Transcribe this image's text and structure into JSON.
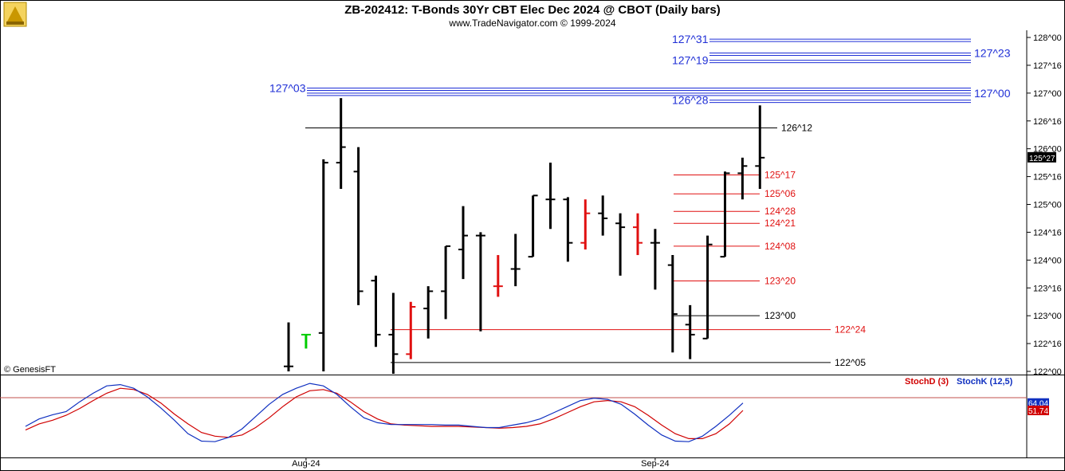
{
  "header": {
    "title": "ZB-202412:  T-Bonds 30Yr CBT Elec Dec 2024 @ CBOT  (Daily bars)",
    "subtitle": "www.TradeNavigator.com © 1999-2024"
  },
  "watermark": "© GenesisFT",
  "logo_icon": "trading-floor-logo-icon",
  "colors": {
    "up": "#00cc00",
    "down": "#e01010",
    "neutral": "#000000",
    "levels_blue": "#1f2fd6",
    "levels_red": "#e01010",
    "stochD": "#d00000",
    "stochK": "#1030c0",
    "last_badge": "#000000",
    "stochK_badge": "#1030c0",
    "stochD_badge": "#d00000"
  },
  "chart_data": [
    {
      "type": "ohlc",
      "title": "ZB-202412:  T-Bonds 30Yr CBT Elec Dec 2024 @ CBOT  (Daily bars)",
      "y_unit": "32nds",
      "ylim": [
        122.0,
        128.125
      ],
      "y_ticks": [
        "128^00",
        "127^16",
        "127^00",
        "126^16",
        "126^00",
        "125^16",
        "125^00",
        "124^16",
        "124^00",
        "123^16",
        "123^00",
        "122^16",
        "122^00"
      ],
      "y_tick_values": [
        128.0,
        127.5,
        127.0,
        126.5,
        126.0,
        125.5,
        125.0,
        124.5,
        124.0,
        123.5,
        123.0,
        122.5,
        122.0
      ],
      "x_labels": [
        {
          "label": "Aug-24",
          "bar": 1
        },
        {
          "label": "Sep-24",
          "bar": 21
        }
      ],
      "last_price": "125^27",
      "last_price_value": 125.84,
      "bars": [
        {
          "o": 122.09,
          "h": 122.88,
          "l": 122.0,
          "c": 122.09,
          "color": "neutral"
        },
        {
          "o": 122.66,
          "h": 122.66,
          "l": 122.41,
          "c": 122.66,
          "color": "up"
        },
        {
          "o": 122.69,
          "h": 125.81,
          "l": 122.0,
          "c": 125.75,
          "color": "neutral"
        },
        {
          "o": 125.75,
          "h": 126.91,
          "l": 125.28,
          "c": 126.03,
          "color": "neutral"
        },
        {
          "o": 125.59,
          "h": 126.03,
          "l": 123.19,
          "c": 123.44,
          "color": "neutral"
        },
        {
          "o": 123.63,
          "h": 123.72,
          "l": 122.44,
          "c": 122.66,
          "color": "neutral"
        },
        {
          "o": 122.66,
          "h": 123.41,
          "l": 121.75,
          "c": 122.31,
          "color": "neutral"
        },
        {
          "o": 122.31,
          "h": 123.25,
          "l": 122.22,
          "c": 123.16,
          "color": "down"
        },
        {
          "o": 123.13,
          "h": 123.53,
          "l": 122.59,
          "c": 123.44,
          "color": "neutral"
        },
        {
          "o": 123.44,
          "h": 124.25,
          "l": 122.94,
          "c": 124.25,
          "color": "neutral"
        },
        {
          "o": 124.19,
          "h": 124.97,
          "l": 123.66,
          "c": 124.44,
          "color": "neutral"
        },
        {
          "o": 124.44,
          "h": 124.5,
          "l": 122.72,
          "c": 124.44,
          "color": "neutral"
        },
        {
          "o": 123.53,
          "h": 124.09,
          "l": 123.34,
          "c": 123.53,
          "color": "down"
        },
        {
          "o": 123.84,
          "h": 124.47,
          "l": 123.53,
          "c": 123.84,
          "color": "neutral"
        },
        {
          "o": 124.06,
          "h": 125.16,
          "l": 124.06,
          "c": 125.16,
          "color": "neutral"
        },
        {
          "o": 125.09,
          "h": 125.75,
          "l": 124.56,
          "c": 125.09,
          "color": "neutral"
        },
        {
          "o": 125.09,
          "h": 125.13,
          "l": 123.97,
          "c": 124.31,
          "color": "neutral"
        },
        {
          "o": 124.31,
          "h": 125.09,
          "l": 124.19,
          "c": 124.84,
          "color": "down"
        },
        {
          "o": 124.84,
          "h": 125.16,
          "l": 124.44,
          "c": 124.75,
          "color": "neutral"
        },
        {
          "o": 124.66,
          "h": 124.84,
          "l": 123.72,
          "c": 124.59,
          "color": "neutral"
        },
        {
          "o": 124.59,
          "h": 124.84,
          "l": 124.09,
          "c": 124.31,
          "color": "down"
        },
        {
          "o": 124.31,
          "h": 124.56,
          "l": 123.47,
          "c": 124.31,
          "color": "neutral"
        },
        {
          "o": 123.91,
          "h": 124.09,
          "l": 122.34,
          "c": 123.03,
          "color": "neutral"
        },
        {
          "o": 122.84,
          "h": 123.19,
          "l": 122.22,
          "c": 122.66,
          "color": "neutral"
        },
        {
          "o": 122.59,
          "h": 124.44,
          "l": 122.59,
          "c": 124.28,
          "color": "neutral"
        },
        {
          "o": 124.06,
          "h": 125.59,
          "l": 124.06,
          "c": 125.56,
          "color": "neutral"
        },
        {
          "o": 125.56,
          "h": 125.84,
          "l": 125.09,
          "c": 125.69,
          "color": "neutral"
        },
        {
          "o": 125.69,
          "h": 126.78,
          "l": 125.28,
          "c": 125.84,
          "color": "neutral"
        }
      ],
      "levels": [
        {
          "label": "127^31",
          "value": 127.97,
          "color": "blue",
          "side": "left"
        },
        {
          "label": "127^23",
          "value": 127.72,
          "color": "blue",
          "side": "right"
        },
        {
          "label": "127^19",
          "value": 127.59,
          "color": "blue",
          "side": "left"
        },
        {
          "label": "127^03",
          "value": 127.09,
          "color": "blue",
          "side": "left"
        },
        {
          "label": "127^00",
          "value": 127.0,
          "color": "blue",
          "side": "right"
        },
        {
          "label": "126^28",
          "value": 126.875,
          "color": "blue",
          "side": "left"
        },
        {
          "label": "126^12",
          "value": 126.375,
          "color": "black",
          "side": "right"
        },
        {
          "label": "125^17",
          "value": 125.53,
          "color": "red",
          "side": "right"
        },
        {
          "label": "125^06",
          "value": 125.19,
          "color": "red",
          "side": "right"
        },
        {
          "label": "124^28",
          "value": 124.875,
          "color": "red",
          "side": "right"
        },
        {
          "label": "124^21",
          "value": 124.66,
          "color": "red",
          "side": "right"
        },
        {
          "label": "124^08",
          "value": 124.25,
          "color": "red",
          "side": "right"
        },
        {
          "label": "123^20",
          "value": 123.625,
          "color": "red",
          "side": "right"
        },
        {
          "label": "123^00",
          "value": 123.0,
          "color": "black",
          "side": "right"
        },
        {
          "label": "122^24",
          "value": 122.75,
          "color": "red",
          "side": "right"
        },
        {
          "label": "122^05",
          "value": 122.16,
          "color": "black",
          "side": "right"
        }
      ]
    },
    {
      "type": "line",
      "title": "",
      "ylim": [
        0,
        100
      ],
      "series": [
        {
          "name": "StochD (3)",
          "color": "#d00000",
          "last_label": "51.74",
          "values": [
            20,
            30,
            36,
            44,
            55,
            68,
            80,
            88,
            86,
            78,
            64,
            46,
            30,
            16,
            10,
            8,
            12,
            24,
            40,
            58,
            74,
            84,
            86,
            80,
            66,
            50,
            38,
            30,
            28,
            27,
            26,
            26,
            26,
            25,
            24,
            23,
            24,
            26,
            30,
            38,
            48,
            58,
            66,
            68,
            66,
            58,
            44,
            28,
            14,
            6,
            6,
            14,
            30,
            52
          ]
        },
        {
          "name": "StochK (12,5)",
          "color": "#1030c0",
          "last_label": "64.04",
          "values": [
            26,
            38,
            45,
            50,
            66,
            80,
            92,
            94,
            88,
            74,
            56,
            36,
            14,
            2,
            1,
            8,
            22,
            42,
            62,
            78,
            88,
            96,
            92,
            78,
            58,
            40,
            32,
            29,
            29,
            29,
            29,
            28,
            28,
            26,
            24,
            24,
            28,
            32,
            38,
            48,
            58,
            68,
            72,
            70,
            62,
            46,
            28,
            12,
            2,
            1,
            10,
            26,
            44,
            64
          ]
        }
      ]
    }
  ]
}
